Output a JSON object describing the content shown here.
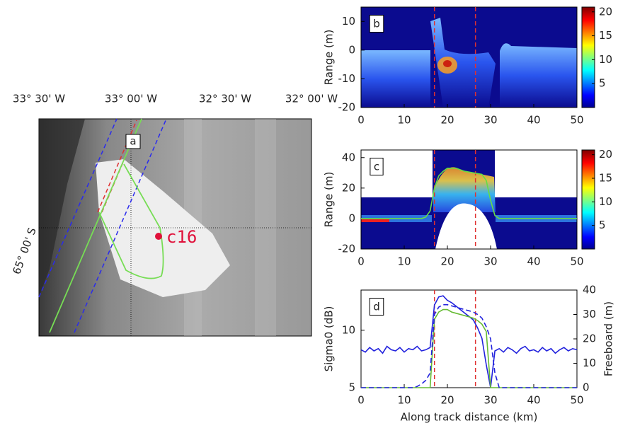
{
  "chart_data": [
    {
      "type": "map",
      "panel": "a",
      "lon_labels": [
        "33° 30' W",
        "33° 00' W",
        "32° 30' W",
        "32° 00' W"
      ],
      "lat_label": "65° 00' S",
      "annotation": "c16"
    },
    {
      "type": "heatmap",
      "panel": "b",
      "ylabel": "Range (m)",
      "xlim": [
        0,
        50
      ],
      "xticks": [
        0,
        10,
        20,
        30,
        40,
        50
      ],
      "ylim": [
        -20,
        15
      ],
      "yticks": [
        -20,
        -10,
        0,
        10
      ],
      "clim": [
        0,
        21
      ],
      "cticks": [
        5,
        10,
        15,
        20
      ],
      "vlines": [
        17,
        26.5
      ],
      "vline_color": "#e03030"
    },
    {
      "type": "heatmap",
      "panel": "c",
      "ylabel": "Range (m)",
      "xlim": [
        0,
        50
      ],
      "xticks": [
        0,
        10,
        20,
        30,
        40,
        50
      ],
      "ylim": [
        -20,
        45
      ],
      "yticks": [
        -20,
        0,
        20,
        40
      ],
      "clim": [
        0,
        21
      ],
      "cticks": [
        5,
        10,
        15,
        20
      ],
      "vlines": [
        17,
        26.5
      ],
      "vline_color": "#e03030",
      "series": [
        {
          "color": "#66dd44",
          "x": [
            0,
            10,
            14,
            15,
            16,
            17,
            18,
            19,
            20,
            22,
            24,
            26,
            28,
            29,
            30,
            31,
            32,
            40,
            50
          ],
          "values": [
            0,
            0,
            0,
            1,
            5,
            20,
            28,
            31,
            33,
            33,
            31,
            30,
            29,
            25,
            12,
            2,
            0,
            0,
            0
          ]
        }
      ]
    },
    {
      "type": "line",
      "panel": "d",
      "xlabel": "Along track distance (km)",
      "ylabel": "Sigma0 (dB)",
      "y2label": "Freeboard (m)",
      "xlim": [
        0,
        50
      ],
      "xticks": [
        0,
        10,
        20,
        30,
        40,
        50
      ],
      "ylim": [
        5,
        13.5
      ],
      "yticks": [
        5,
        10
      ],
      "y2lim": [
        0,
        40
      ],
      "y2ticks": [
        0,
        10,
        20,
        30,
        40
      ],
      "vlines": [
        17,
        26.5
      ],
      "vline_color": "#e03030",
      "x": [
        0,
        1,
        2,
        3,
        4,
        5,
        6,
        7,
        8,
        9,
        10,
        11,
        12,
        13,
        14,
        15,
        16,
        17,
        18,
        19,
        20,
        21,
        22,
        23,
        24,
        25,
        26,
        27,
        28,
        29,
        30,
        31,
        32,
        33,
        34,
        35,
        36,
        37,
        38,
        39,
        40,
        41,
        42,
        43,
        44,
        45,
        46,
        47,
        48,
        49,
        50
      ],
      "series": [
        {
          "color": "#2222dd",
          "values": [
            8.3,
            8.1,
            8.5,
            8.2,
            8.4,
            8.0,
            8.6,
            8.3,
            8.2,
            8.5,
            8.1,
            8.4,
            8.3,
            8.6,
            8.2,
            8.3,
            8.5,
            12.2,
            12.9,
            13.0,
            12.6,
            12.4,
            12.1,
            11.8,
            11.5,
            11.2,
            10.9,
            10.2,
            9.3,
            7.0,
            5.0,
            8.2,
            8.4,
            8.1,
            8.5,
            8.3,
            8.0,
            8.4,
            8.6,
            8.2,
            8.3,
            8.1,
            8.5,
            8.2,
            8.4,
            8.0,
            8.3,
            8.5,
            8.2,
            8.4,
            8.3
          ]
        },
        {
          "color": "#66bb33",
          "axis": "y2",
          "values": [
            0,
            0,
            0,
            0,
            0,
            0,
            0,
            0,
            0,
            0,
            0,
            0,
            0,
            0,
            0,
            0,
            0,
            28,
            31,
            32,
            32,
            31,
            30.5,
            30,
            29.5,
            29,
            28.5,
            27.5,
            26,
            23,
            0,
            0,
            0,
            0,
            0,
            0,
            0,
            0,
            0,
            0,
            0,
            0,
            0,
            0,
            0,
            0,
            0,
            0,
            0,
            0,
            0
          ]
        },
        {
          "color": "#2222dd",
          "axis": "y2",
          "dash": true,
          "values": [
            0,
            0,
            0,
            0,
            0,
            0,
            0,
            0,
            0,
            0,
            0,
            0,
            0,
            0.5,
            1.5,
            3,
            6,
            30,
            33,
            34,
            34,
            33.5,
            33,
            32.5,
            32,
            31.5,
            31,
            30,
            28.5,
            25,
            20,
            6,
            0,
            0,
            0,
            0,
            0,
            0,
            0,
            0,
            0,
            0,
            0,
            0,
            0,
            0,
            0,
            0,
            0,
            0,
            0
          ]
        }
      ]
    }
  ]
}
